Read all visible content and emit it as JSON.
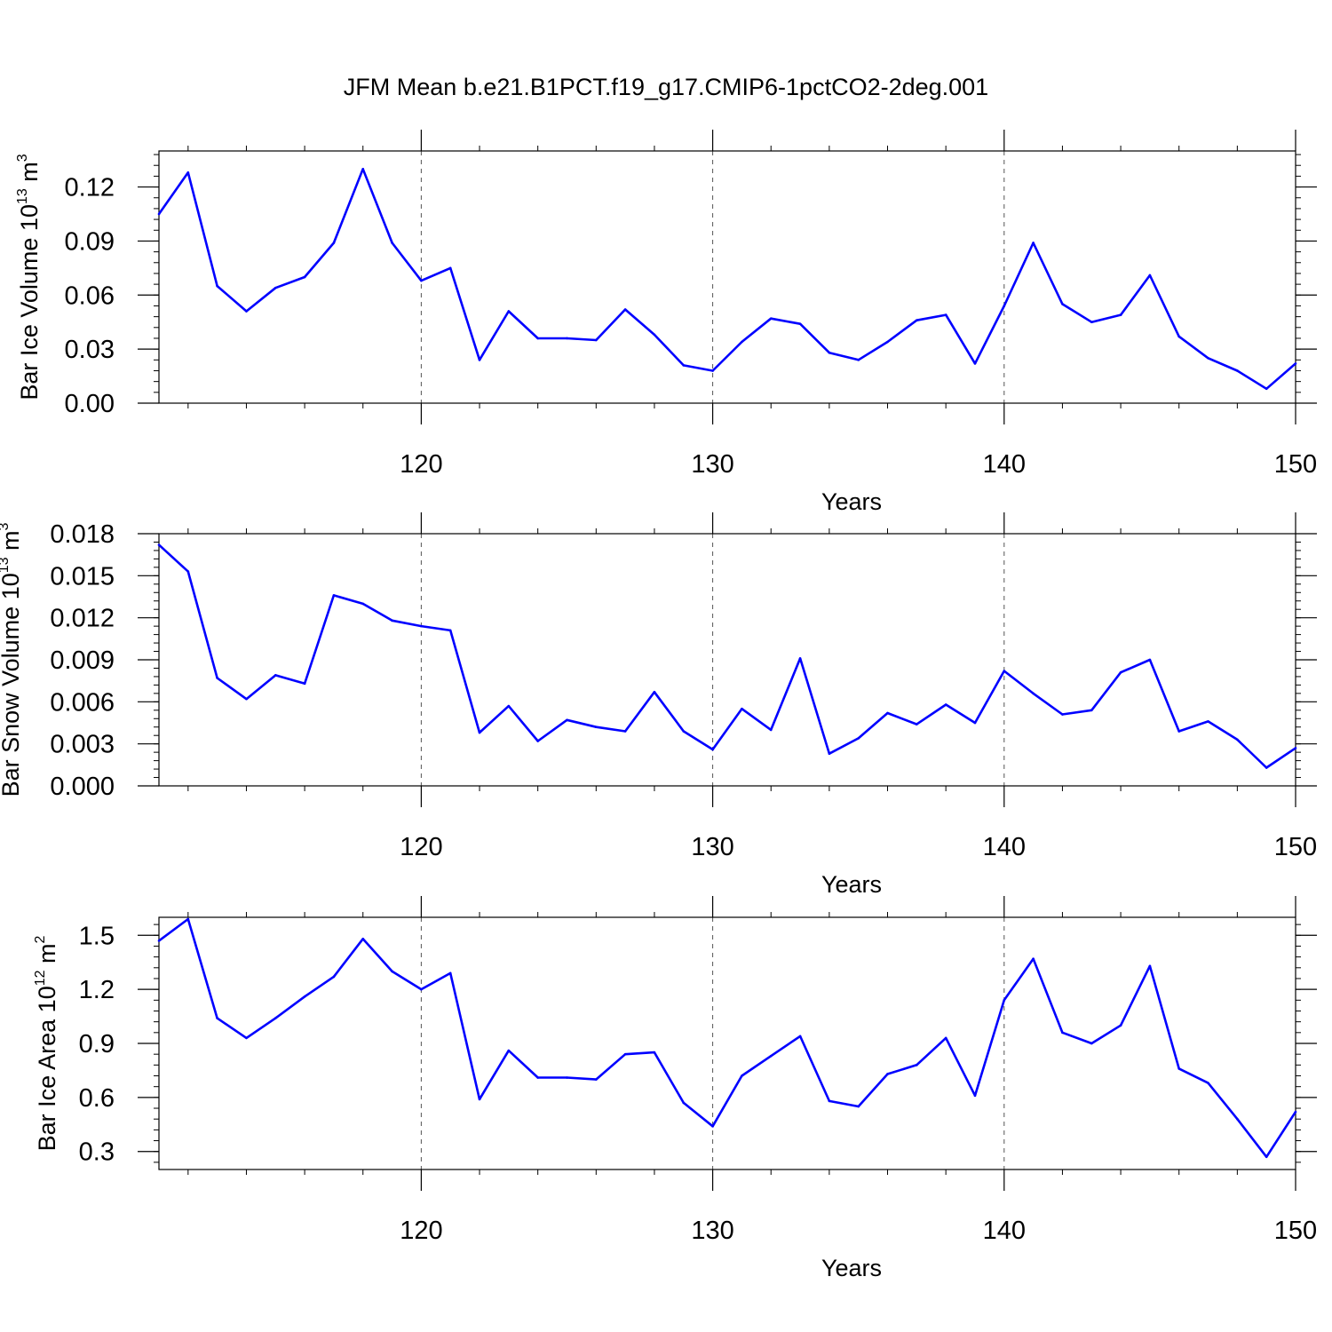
{
  "title": "JFM Mean b.e21.B1PCT.f19_g17.CMIP6-1pctCO2-2deg.001",
  "style": {
    "line_color": "#0000ff",
    "grid_color": "#555555",
    "axis_color": "#000000"
  },
  "chart_data": [
    {
      "type": "line",
      "xlabel": "Years",
      "ylabel": {
        "base": "Bar Ice Volume 10",
        "exp": "13",
        "unit": " m",
        "unit_exp": "3"
      },
      "xlim": [
        111,
        150
      ],
      "ylim": [
        0,
        0.14
      ],
      "x_ticks": [
        120,
        130,
        140,
        150
      ],
      "x_tick_labels": [
        "120",
        "130",
        "140",
        "150"
      ],
      "y_ticks": [
        0,
        0.03,
        0.06,
        0.09,
        0.12
      ],
      "y_tick_labels": [
        "0.00",
        "0.03",
        "0.06",
        "0.09",
        "0.12"
      ],
      "y_minor_step": 0.006,
      "grid": "x-major-dashed",
      "x": [
        111,
        112,
        113,
        114,
        115,
        116,
        117,
        118,
        119,
        120,
        121,
        122,
        123,
        124,
        125,
        126,
        127,
        128,
        129,
        130,
        131,
        132,
        133,
        134,
        135,
        136,
        137,
        138,
        139,
        140,
        141,
        142,
        143,
        144,
        145,
        146,
        147,
        148,
        149,
        150
      ],
      "values": [
        0.105,
        0.128,
        0.065,
        0.051,
        0.064,
        0.07,
        0.089,
        0.13,
        0.089,
        0.068,
        0.075,
        0.024,
        0.051,
        0.036,
        0.036,
        0.035,
        0.052,
        0.038,
        0.021,
        0.018,
        0.034,
        0.047,
        0.044,
        0.028,
        0.024,
        0.034,
        0.046,
        0.049,
        0.022,
        0.054,
        0.089,
        0.055,
        0.045,
        0.049,
        0.071,
        0.037,
        0.025,
        0.018,
        0.008,
        0.022
      ]
    },
    {
      "type": "line",
      "xlabel": "Years",
      "ylabel": {
        "base": "Bar Snow Volume 10",
        "exp": "13",
        "unit": " m",
        "unit_exp": "3"
      },
      "xlim": [
        111,
        150
      ],
      "ylim": [
        0,
        0.018
      ],
      "x_ticks": [
        120,
        130,
        140,
        150
      ],
      "x_tick_labels": [
        "120",
        "130",
        "140",
        "150"
      ],
      "y_ticks": [
        0,
        0.003,
        0.006,
        0.009,
        0.012,
        0.015,
        0.018
      ],
      "y_tick_labels": [
        "0.000",
        "0.003",
        "0.006",
        "0.009",
        "0.012",
        "0.015",
        "0.018"
      ],
      "y_minor_step": 0.0006,
      "grid": "x-major-dashed",
      "x": [
        111,
        112,
        113,
        114,
        115,
        116,
        117,
        118,
        119,
        120,
        121,
        122,
        123,
        124,
        125,
        126,
        127,
        128,
        129,
        130,
        131,
        132,
        133,
        134,
        135,
        136,
        137,
        138,
        139,
        140,
        141,
        142,
        143,
        144,
        145,
        146,
        147,
        148,
        149,
        150
      ],
      "values": [
        0.0172,
        0.0153,
        0.0077,
        0.0062,
        0.0079,
        0.0073,
        0.0136,
        0.013,
        0.0118,
        0.0114,
        0.0111,
        0.0038,
        0.0057,
        0.0032,
        0.0047,
        0.0042,
        0.0039,
        0.0067,
        0.0039,
        0.0026,
        0.0055,
        0.004,
        0.0091,
        0.0023,
        0.0034,
        0.0052,
        0.0044,
        0.0058,
        0.0045,
        0.0082,
        0.0066,
        0.0051,
        0.0054,
        0.0081,
        0.009,
        0.0039,
        0.0046,
        0.0033,
        0.0013,
        0.0027
      ]
    },
    {
      "type": "line",
      "xlabel": "Years",
      "ylabel": {
        "base": "Bar Ice Area 10",
        "exp": "12",
        "unit": " m",
        "unit_exp": "2"
      },
      "xlim": [
        111,
        150
      ],
      "ylim": [
        0.2,
        1.6
      ],
      "x_ticks": [
        120,
        130,
        140,
        150
      ],
      "x_tick_labels": [
        "120",
        "130",
        "140",
        "150"
      ],
      "y_ticks": [
        0.3,
        0.6,
        0.9,
        1.2,
        1.5
      ],
      "y_tick_labels": [
        "0.3",
        "0.6",
        "0.9",
        "1.2",
        "1.5"
      ],
      "y_minor_step": 0.06,
      "grid": "x-major-dashed",
      "x": [
        111,
        112,
        113,
        114,
        115,
        116,
        117,
        118,
        119,
        120,
        121,
        122,
        123,
        124,
        125,
        126,
        127,
        128,
        129,
        130,
        131,
        132,
        133,
        134,
        135,
        136,
        137,
        138,
        139,
        140,
        141,
        142,
        143,
        144,
        145,
        146,
        147,
        148,
        149,
        150
      ],
      "values": [
        1.47,
        1.59,
        1.04,
        0.93,
        1.04,
        1.16,
        1.27,
        1.48,
        1.3,
        1.2,
        1.29,
        0.59,
        0.86,
        0.71,
        0.71,
        0.7,
        0.84,
        0.85,
        0.57,
        0.44,
        0.72,
        0.83,
        0.94,
        0.58,
        0.55,
        0.73,
        0.78,
        0.93,
        0.61,
        1.14,
        1.37,
        0.96,
        0.9,
        1.0,
        1.33,
        0.76,
        0.68,
        0.48,
        0.27,
        0.52
      ]
    }
  ]
}
